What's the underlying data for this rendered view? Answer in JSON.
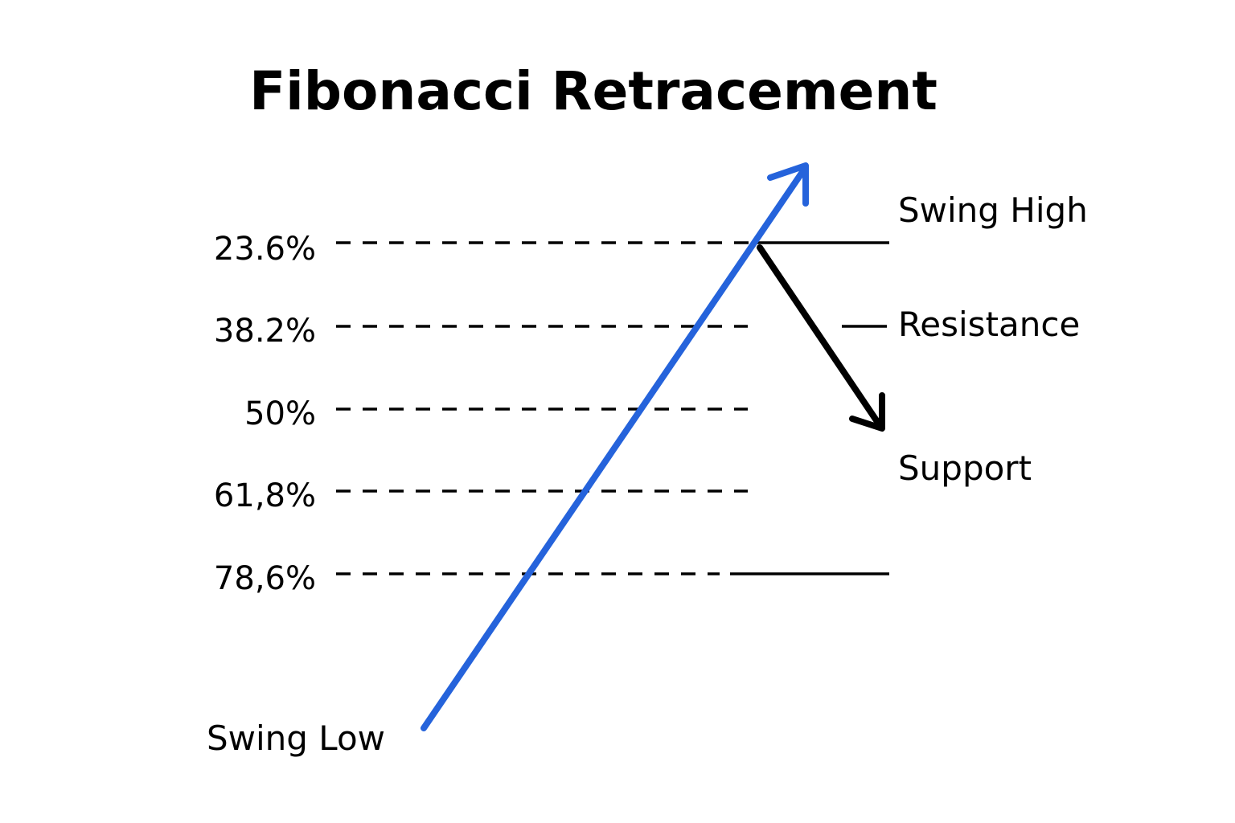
{
  "title": "Fibonacci Retracement",
  "levels": [
    {
      "label": "23.6%"
    },
    {
      "label": "38.2%"
    },
    {
      "label": "50%"
    },
    {
      "label": "61,8%"
    },
    {
      "label": "78,6%"
    }
  ],
  "labels": {
    "swing_high": "Swing High",
    "resistance": "Resistance",
    "support": "Support",
    "swing_low": "Swing Low"
  },
  "colors": {
    "uptrend_arrow": "#2563db",
    "retracement_arrow": "#000000",
    "lines": "#000000",
    "text": "#000000"
  },
  "icons": {
    "uptrend": "arrow-up-right-icon",
    "retracement": "arrow-down-right-icon"
  }
}
